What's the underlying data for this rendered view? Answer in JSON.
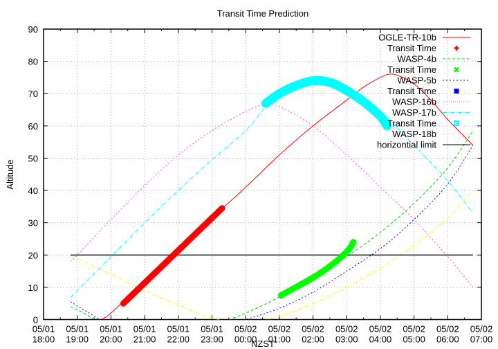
{
  "chart_data": {
    "type": "line",
    "title": "Transit Time Prediction",
    "xlabel": "NZST",
    "ylabel": "Altitude",
    "ylim": [
      0,
      90
    ],
    "yticks": [
      0,
      10,
      20,
      30,
      40,
      50,
      60,
      70,
      80,
      90
    ],
    "xlim_hours_from_0501_1800": [
      0,
      13
    ],
    "xticks": [
      {
        "date": "05/01",
        "time": "18:00"
      },
      {
        "date": "05/01",
        "time": "19:00"
      },
      {
        "date": "05/01",
        "time": "20:00"
      },
      {
        "date": "05/01",
        "time": "21:00"
      },
      {
        "date": "05/01",
        "time": "22:00"
      },
      {
        "date": "05/01",
        "time": "23:00"
      },
      {
        "date": "05/02",
        "time": "00:00"
      },
      {
        "date": "05/02",
        "time": "01:00"
      },
      {
        "date": "05/02",
        "time": "02:00"
      },
      {
        "date": "05/02",
        "time": "03:00"
      },
      {
        "date": "05/02",
        "time": "04:00"
      },
      {
        "date": "05/02",
        "time": "05:00"
      },
      {
        "date": "05/02",
        "time": "06:00"
      },
      {
        "date": "05/02",
        "time": "07:00"
      }
    ],
    "grid": true,
    "legend_position": "top-right",
    "series": [
      {
        "name": "OGLE-TR-10b",
        "color": "#ff0000",
        "style": "solid",
        "x": [
          1.7,
          2,
          3,
          4,
          5,
          6,
          7,
          8,
          9,
          9.5,
          10,
          10.4,
          11,
          11.5,
          12,
          12.75
        ],
        "y": [
          0,
          2,
          12,
          22,
          31.5,
          41,
          51,
          60,
          68,
          72,
          75,
          76,
          73,
          68,
          62,
          54
        ]
      },
      {
        "name": "Transit Time",
        "marker_of": "OGLE-TR-10b",
        "color": "#ff0000",
        "marker": "plus",
        "x": [
          2.37,
          5.3
        ],
        "y": [
          5,
          34.5
        ]
      },
      {
        "name": "WASP-4b",
        "color": "#00cc00",
        "style": "dash",
        "x": [
          0.8,
          1.2,
          1.5,
          2,
          3,
          4,
          5,
          6,
          7,
          8,
          9,
          10,
          11,
          12,
          12.75
        ],
        "y": [
          4,
          2,
          0,
          -4,
          -6,
          -5,
          -2,
          2,
          7,
          13,
          19.5,
          27,
          36,
          47,
          58.5
        ]
      },
      {
        "name": "Transit Time",
        "marker_of": "WASP-4b",
        "color": "#00ff00",
        "marker": "cross",
        "x": [
          7.05,
          7.4,
          8,
          8.5,
          9,
          9.2
        ],
        "y": [
          7.5,
          9.5,
          13,
          16.5,
          21,
          24
        ]
      },
      {
        "name": "WASP-5b",
        "color": "#0000ff",
        "style": "dot",
        "x": [
          0.8,
          1.2,
          1.6,
          2,
          3,
          4,
          5,
          6,
          7,
          8,
          9,
          10,
          11,
          12,
          12.75
        ],
        "y": [
          5.5,
          3,
          0.5,
          -2,
          -5,
          -5,
          -3,
          0,
          3.5,
          8.5,
          15,
          22,
          31,
          42,
          54
        ]
      },
      {
        "name": "Transit Time",
        "marker_of": "WASP-5b",
        "color": "#0000ff",
        "marker": "box",
        "x": [],
        "y": []
      },
      {
        "name": "WASP-16b",
        "color": "#ff44ff",
        "style": "dot",
        "x": [
          0.8,
          1,
          2,
          3,
          4,
          5,
          6,
          6.5,
          7,
          8,
          9,
          10,
          11,
          12,
          12.75
        ],
        "y": [
          18,
          20,
          31,
          41.5,
          51,
          58.5,
          64.5,
          66.5,
          66,
          60,
          51,
          41,
          31,
          19.5,
          10
        ]
      },
      {
        "name": "WASP-17b",
        "color": "#00ffff",
        "style": "dashdot",
        "x": [
          0.8,
          1,
          2,
          3,
          4,
          5,
          6,
          6.6,
          7,
          8,
          9,
          10,
          11,
          12,
          12.75
        ],
        "y": [
          7,
          9,
          19.5,
          30,
          40,
          49.5,
          58.5,
          66,
          69,
          73.5,
          72,
          64.5,
          54,
          43,
          33
        ]
      },
      {
        "name": "Transit Time",
        "marker_of": "WASP-17b",
        "color": "#00ffff",
        "marker": "square",
        "x": [
          6.6,
          7,
          7.5,
          8,
          8.5,
          9,
          9.5,
          10,
          10.2
        ],
        "y": [
          67,
          70,
          72.5,
          74,
          73.5,
          71,
          67.5,
          63,
          60
        ]
      },
      {
        "name": "WASP-18b",
        "color": "#ffff00",
        "style": "dashdot",
        "x": [
          0.8,
          1,
          2,
          3,
          4,
          5,
          6,
          7,
          8,
          9,
          10,
          11,
          12,
          12.75
        ],
        "y": [
          20,
          19,
          14,
          9,
          4.5,
          0.5,
          -1,
          1,
          5,
          10,
          16,
          23,
          31.5,
          40
        ]
      },
      {
        "name": "horizontial limit",
        "color": "#000000",
        "style": "solid",
        "x": [
          0.8,
          12.75
        ],
        "y": [
          20,
          20
        ]
      }
    ]
  },
  "legend": [
    {
      "label": "OGLE-TR-10b",
      "kind": "line",
      "color": "#ff0000",
      "dash": ""
    },
    {
      "label": "Transit Time",
      "kind": "plus",
      "color": "#ff0000"
    },
    {
      "label": "WASP-4b",
      "kind": "line",
      "color": "#00dd00",
      "dash": "4,3"
    },
    {
      "label": "Transit Time",
      "kind": "cross",
      "color": "#00ff00"
    },
    {
      "label": "WASP-5b",
      "kind": "line",
      "color": "#0000ff",
      "dash": "2,3"
    },
    {
      "label": "Transit Time",
      "kind": "box",
      "color": "#0000ff"
    },
    {
      "label": "WASP-16b",
      "kind": "line",
      "color": "#ff44ff",
      "dash": "1,2"
    },
    {
      "label": "WASP-17b",
      "kind": "line",
      "color": "#00ffff",
      "dash": "6,2,1,2"
    },
    {
      "label": "Transit Time",
      "kind": "square",
      "color": "#00ffff"
    },
    {
      "label": "WASP-18b",
      "kind": "line",
      "color": "#ffff00",
      "dash": "6,2,1,2"
    },
    {
      "label": "horizontial limit",
      "kind": "line",
      "color": "#000000",
      "dash": ""
    }
  ]
}
